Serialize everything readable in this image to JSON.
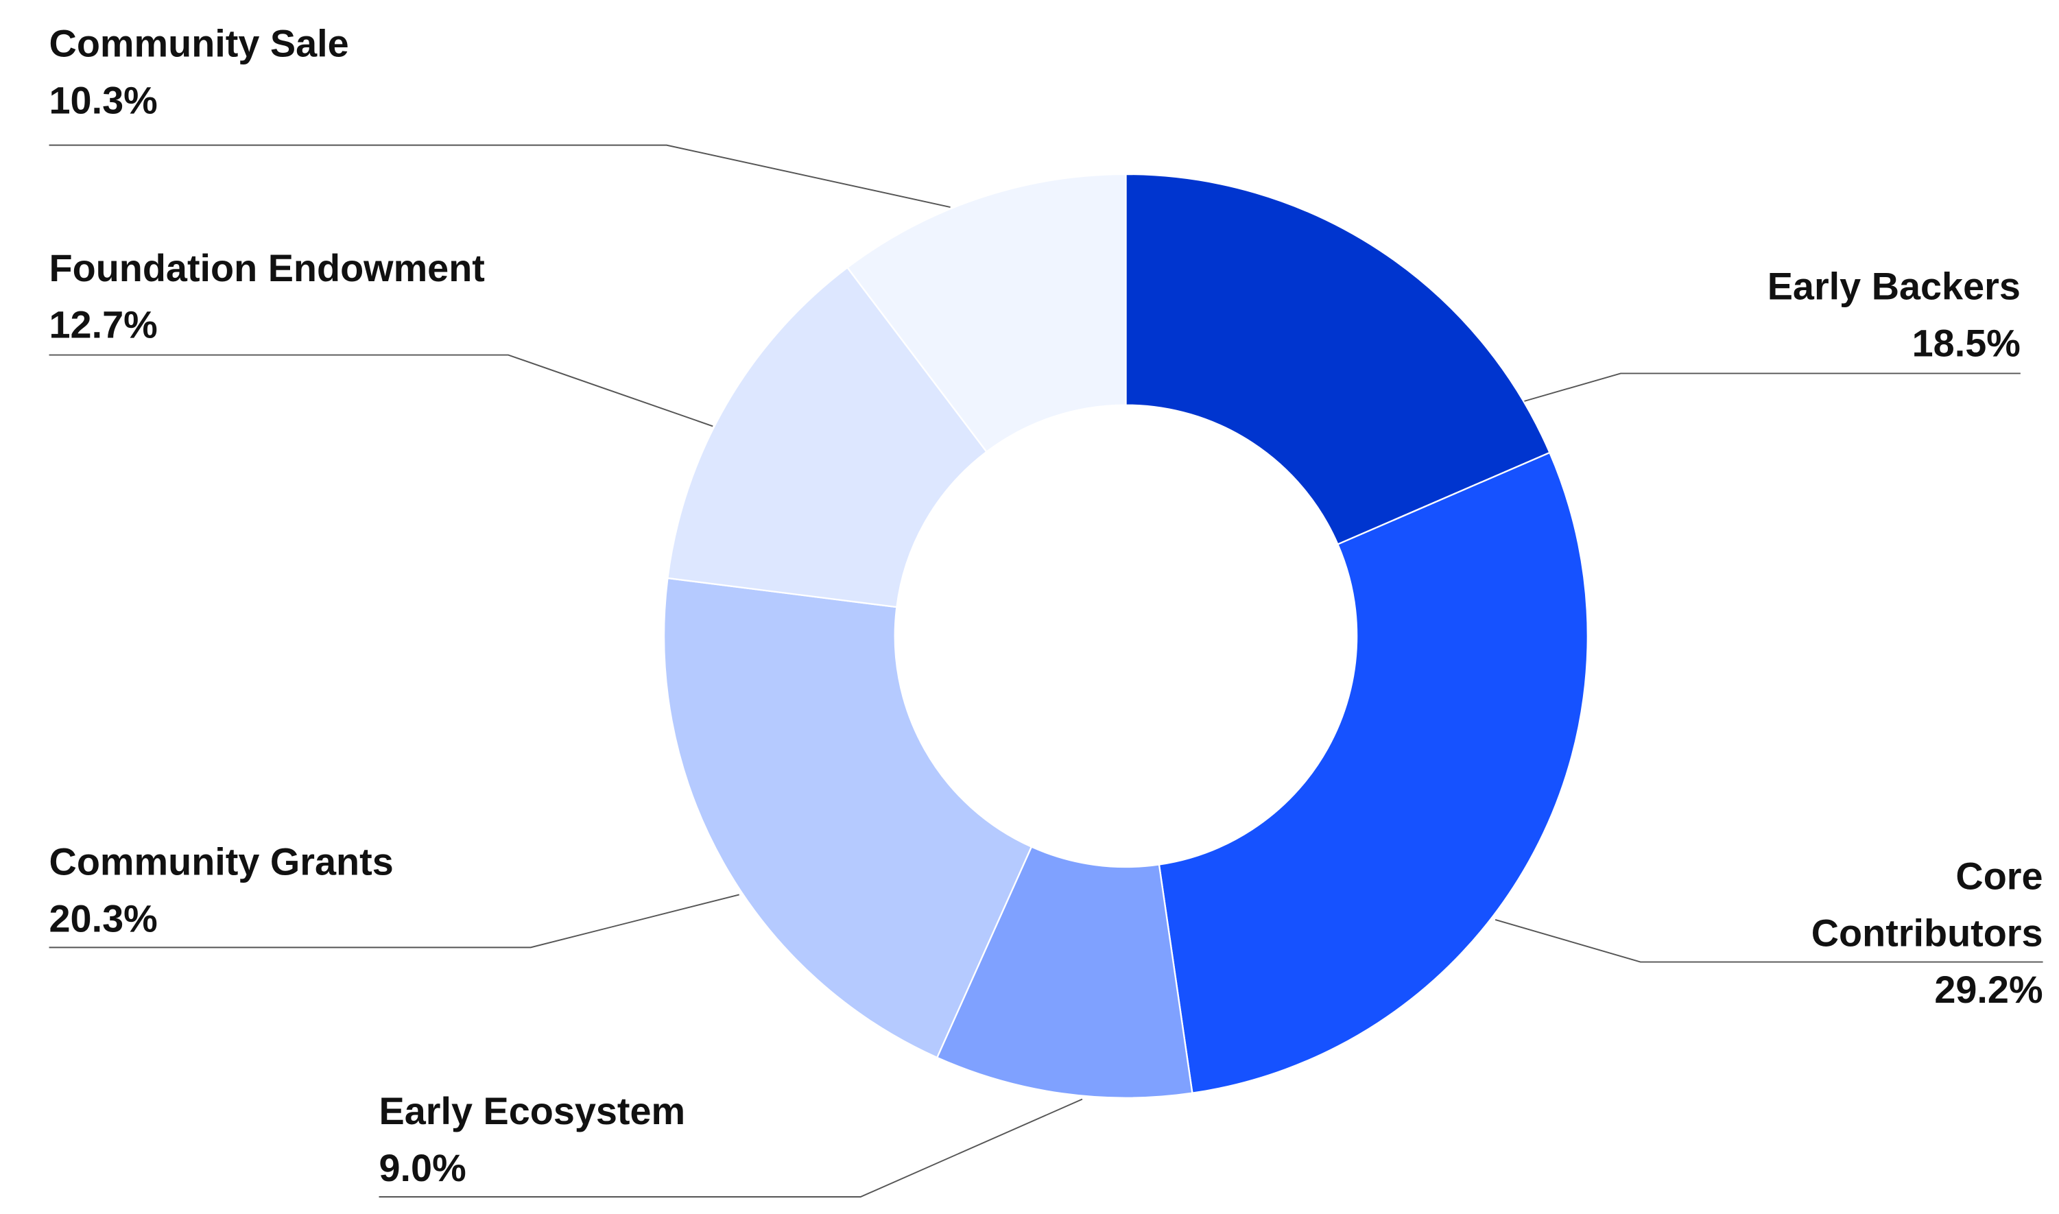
{
  "chart_data": {
    "type": "donut",
    "categories": [
      "Early Backers",
      "Core Contributors",
      "Early Ecosystem",
      "Community Grants",
      "Foundation Endowment",
      "Community Sale"
    ],
    "values": [
      18.5,
      29.2,
      9.0,
      20.3,
      12.7,
      10.3
    ],
    "value_labels": [
      "18.5%",
      "29.2%",
      "9.0%",
      "20.3%",
      "12.7%",
      "10.3%"
    ],
    "colors": [
      "#0035cf",
      "#1652ff",
      "#7fa1ff",
      "#b5caff",
      "#dde7ff",
      "#f0f5ff"
    ]
  }
}
